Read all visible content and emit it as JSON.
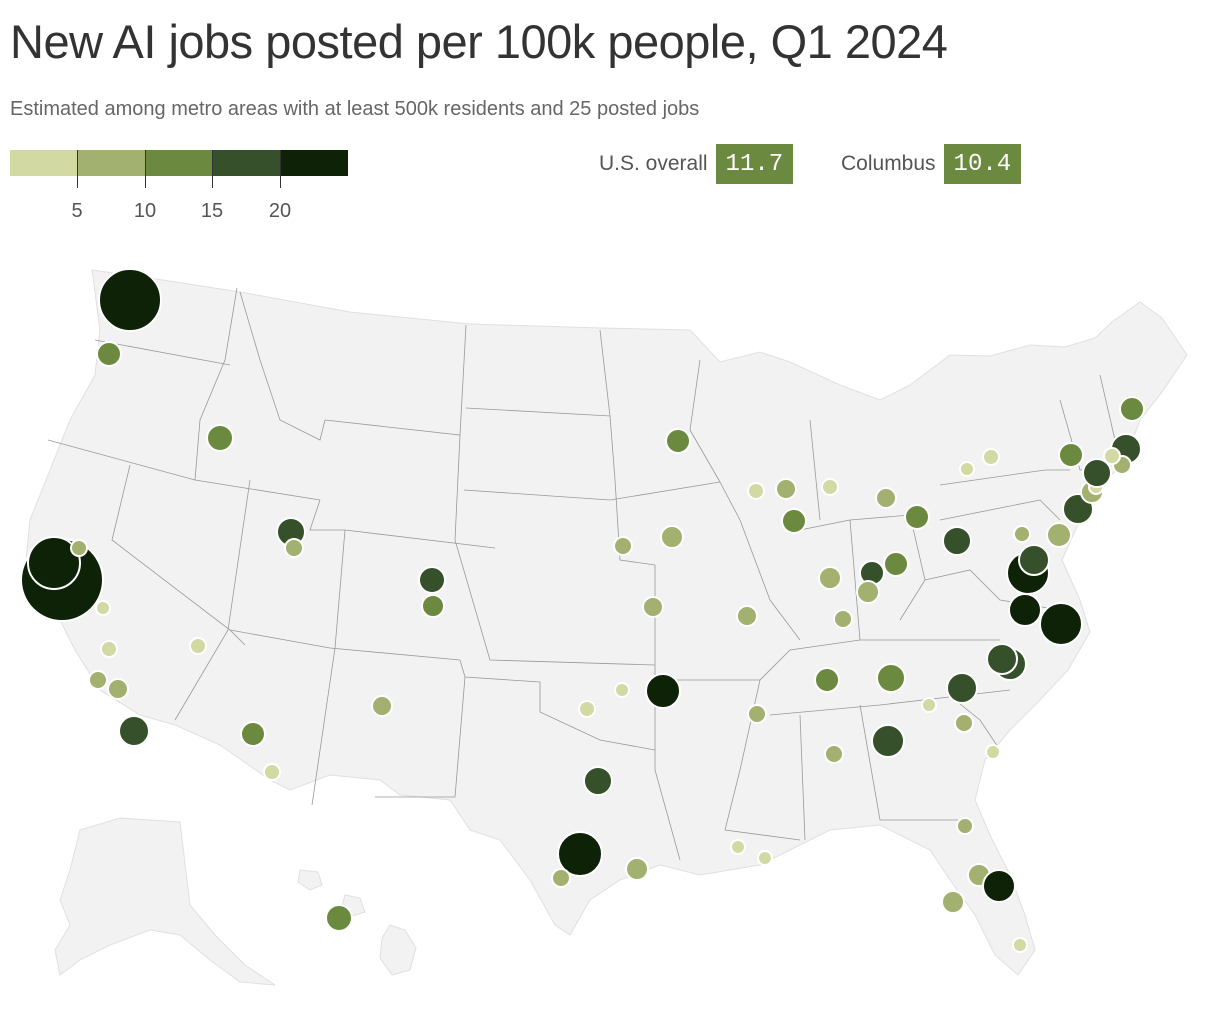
{
  "header": {
    "title": "New AI jobs posted per 100k people, Q1 2024",
    "subtitle": "Estimated among metro areas with at least 500k residents and 25 posted jobs"
  },
  "legend": {
    "colors": [
      "#d3d9a3",
      "#a2b070",
      "#6c8a3f",
      "#35502a",
      "#0d2206"
    ],
    "ticks": [
      "5",
      "10",
      "15",
      "20"
    ]
  },
  "stats": {
    "us_label": "U.S. overall",
    "us_value": "11.7",
    "columbus_label": "Columbus",
    "columbus_value": "10.4",
    "box_color": "#6c8a3f"
  },
  "map": {
    "land_color": "#f2f2f2",
    "border_color": "#999999"
  },
  "chart_data": {
    "type": "bubble-map",
    "title": "New AI jobs posted per 100k people, Q1 2024",
    "subtitle": "Estimated among metro areas with at least 500k residents and 25 posted jobs",
    "color_scale_breaks": [
      5,
      10,
      15,
      20
    ],
    "us_overall": 11.7,
    "columbus": 10.4
  }
}
